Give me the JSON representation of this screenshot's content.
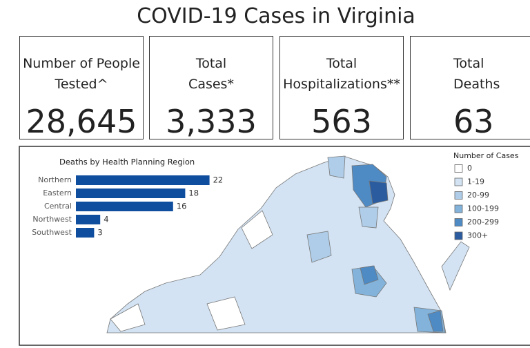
{
  "title": "COVID-19 Cases in Virginia",
  "kpis": [
    {
      "label": [
        "Number of People",
        "Tested^"
      ],
      "value": "28,645"
    },
    {
      "label": [
        "Total",
        "Cases*"
      ],
      "value": "3,333"
    },
    {
      "label": [
        "Total",
        "Hospitalizations**"
      ],
      "value": "563"
    },
    {
      "label": [
        "Total",
        "Deaths"
      ],
      "value": "63"
    }
  ],
  "chart_data": {
    "type": "bar",
    "orientation": "horizontal",
    "title": "Deaths by Health Planning Region",
    "categories": [
      "Northern",
      "Eastern",
      "Central",
      "Northwest",
      "Southwest"
    ],
    "values": [
      22,
      18,
      16,
      4,
      3
    ],
    "color": "#0f4e9e"
  },
  "map_legend": {
    "title": "Number of Cases",
    "items": [
      {
        "label": "0",
        "color": "#ffffff"
      },
      {
        "label": "1-19",
        "color": "#d3e3f3"
      },
      {
        "label": "20-99",
        "color": "#afcde8"
      },
      {
        "label": "100-199",
        "color": "#83b3da"
      },
      {
        "label": "200-299",
        "color": "#4e8ac4"
      },
      {
        "label": "300+",
        "color": "#2a5c9f"
      }
    ]
  }
}
